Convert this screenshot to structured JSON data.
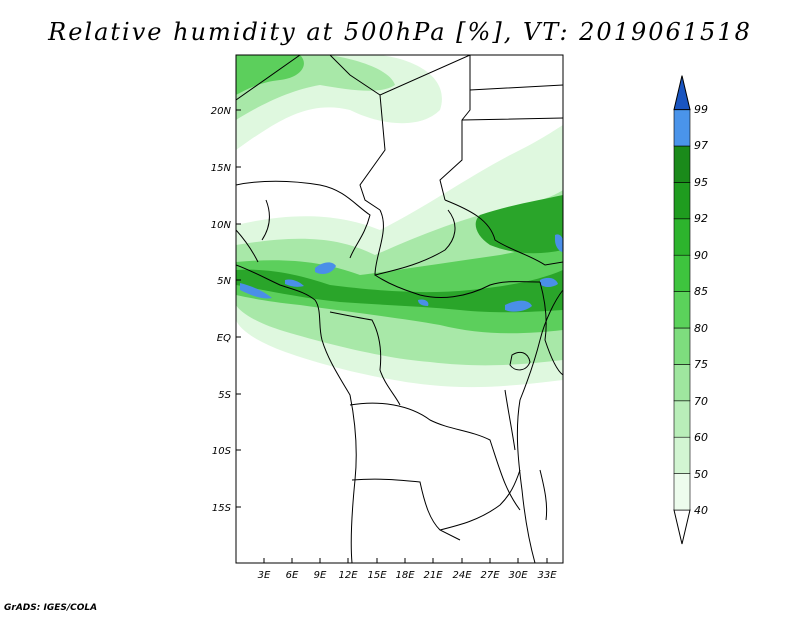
{
  "title": "Relative humidity at 500hPa [%], VT: 2019061518",
  "credit": "GrADS: IGES/COLA",
  "map": {
    "lat_labels": [
      "20N",
      "15N",
      "10N",
      "5N",
      "EQ",
      "5S",
      "10S",
      "15S"
    ],
    "lon_labels": [
      "3E",
      "6E",
      "9E",
      "12E",
      "15E",
      "18E",
      "21E",
      "24E",
      "27E",
      "30E",
      "33E"
    ]
  },
  "colorbar": {
    "levels": [
      "40",
      "50",
      "60",
      "70",
      "75",
      "80",
      "85",
      "90",
      "92",
      "95",
      "97",
      "99"
    ],
    "colors": {
      "40": "#edfced",
      "50": "#d2f5d2",
      "60": "#b9eeb9",
      "70": "#9fe69f",
      "75": "#7edd7e",
      "80": "#5bd25b",
      "85": "#3ec43e",
      "90": "#2db42d",
      "92": "#1f9c1f",
      "95": "#1a8a1a",
      "97": "#4a94ea",
      "99": "#2a6fd6",
      "top": "#1a55c0"
    }
  },
  "colors": {
    "light_green": "#dff8df",
    "mid_green": "#a8e8a8",
    "green": "#5ccf5c",
    "dark_green": "#2aa52a",
    "blue": "#4a8fe8"
  }
}
